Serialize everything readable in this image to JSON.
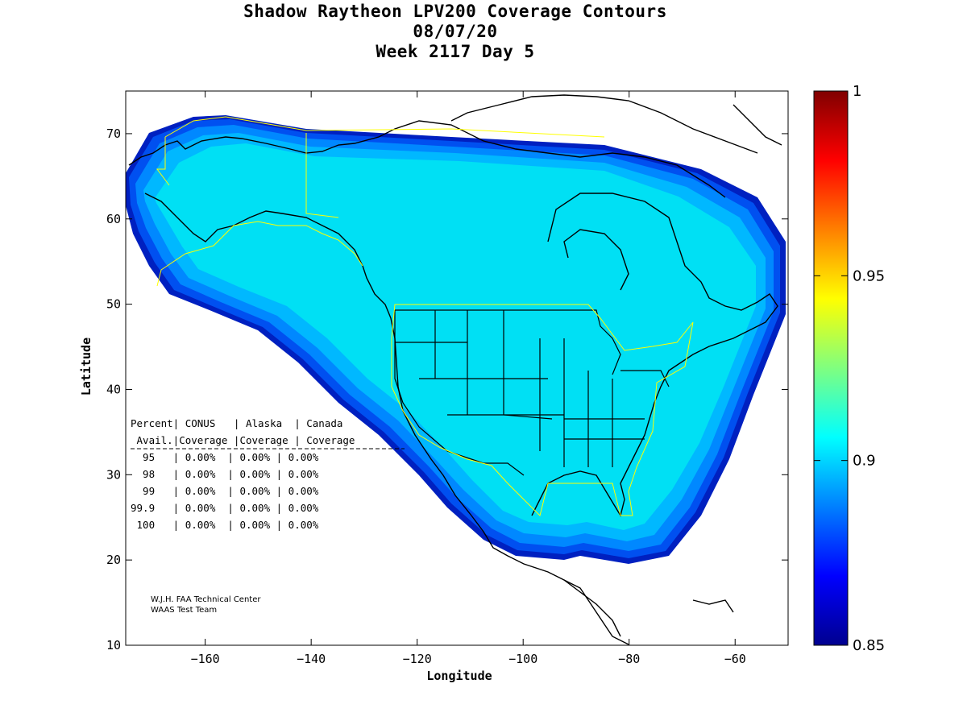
{
  "title": {
    "line1": "Shadow Raytheon LPV200 Coverage Contours",
    "line2": "08/07/20",
    "line3": "Week 2117 Day 5"
  },
  "axes": {
    "xlabel": "Longitude",
    "ylabel": "Latitude",
    "x_ticks": [
      -160,
      -140,
      -120,
      -100,
      -80,
      -60
    ],
    "y_ticks": [
      10,
      20,
      30,
      40,
      50,
      60,
      70
    ],
    "xlim": [
      -175,
      -50
    ],
    "ylim": [
      10,
      75
    ]
  },
  "colorbar": {
    "ticks": [
      "0.85",
      "0.9",
      "0.95",
      "1"
    ],
    "range": [
      0.85,
      1.0
    ],
    "colormap": "jet"
  },
  "coverage_table": {
    "header1": "Percent| CONUS   | Alaska  | Canada",
    "header2": " Avail.|Coverage |Coverage | Coverage",
    "rows": [
      "  95   | 0.00%  | 0.00% | 0.00%",
      "  98   | 0.00%  | 0.00% | 0.00%",
      "  99   | 0.00%  | 0.00% | 0.00%",
      "99.9   | 0.00%  | 0.00% | 0.00%",
      " 100   | 0.00%  | 0.00% | 0.00%"
    ]
  },
  "credit": {
    "line1": "W.J.H. FAA Technical Center",
    "line2": "WAAS Test Team"
  },
  "colors": {
    "coverage_main": "#00e0f4",
    "band_1": "#00b8ff",
    "band_2": "#0088ff",
    "band_3": "#0050f0",
    "band_4": "#0020c0",
    "service_boundary": "#ffff00"
  }
}
